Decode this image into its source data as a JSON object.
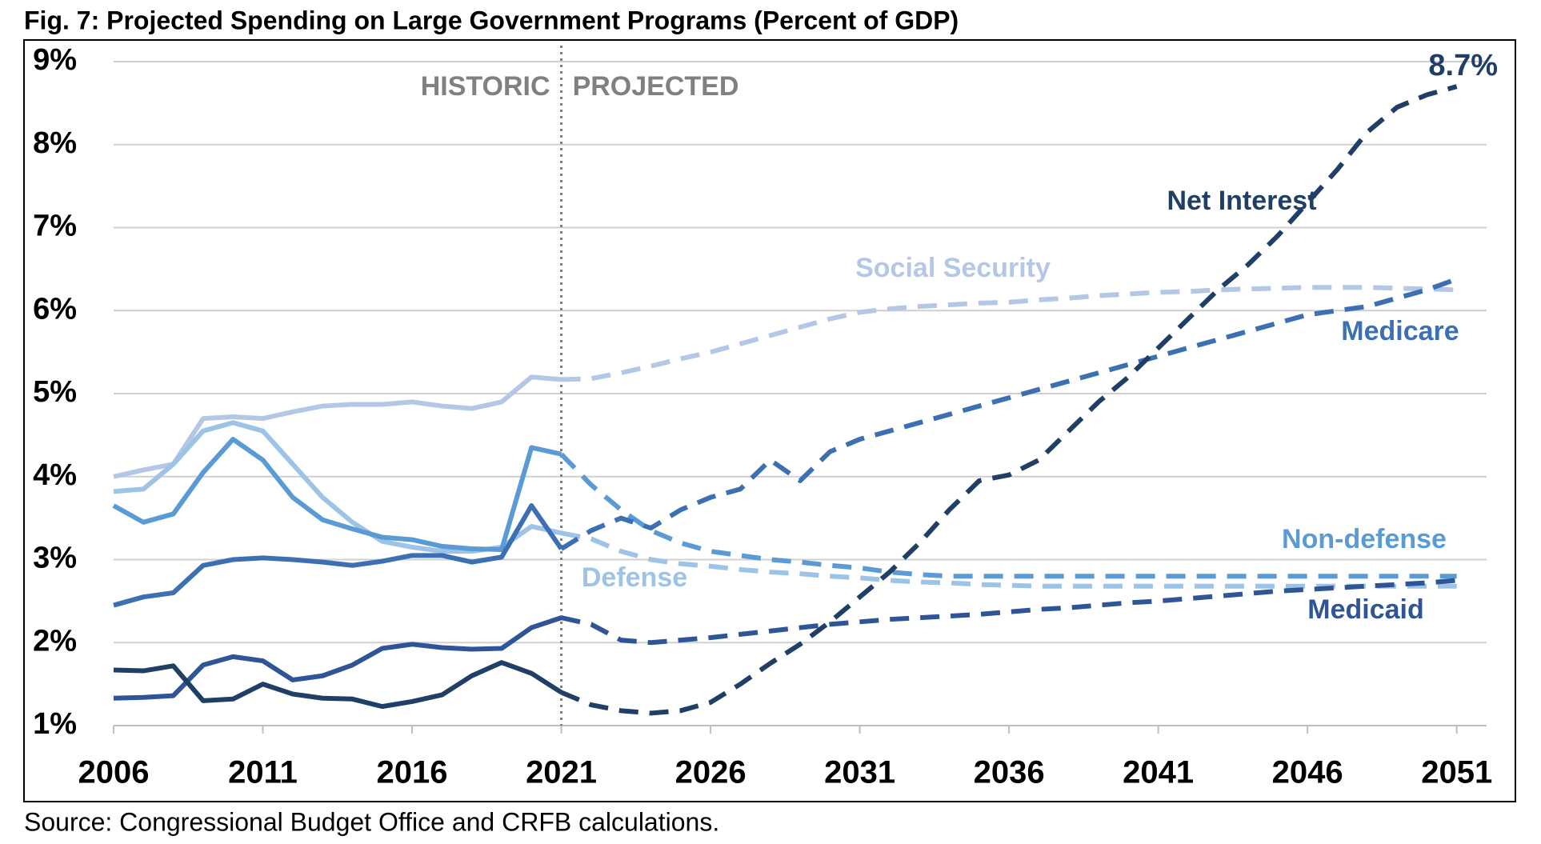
{
  "chart_data": {
    "type": "line",
    "title": "Fig. 7: Projected Spending on Large Government Programs (Percent of GDP)",
    "source": "Source: Congressional Budget Office and CRFB calculations.",
    "divider": {
      "x": 2021,
      "left_label": "HISTORIC",
      "right_label": "PROJECTED"
    },
    "x": [
      2006,
      2007,
      2008,
      2009,
      2010,
      2011,
      2012,
      2013,
      2014,
      2015,
      2016,
      2017,
      2018,
      2019,
      2020,
      2021,
      2022,
      2023,
      2024,
      2025,
      2026,
      2027,
      2028,
      2029,
      2030,
      2031,
      2032,
      2033,
      2034,
      2035,
      2036,
      2037,
      2038,
      2039,
      2040,
      2041,
      2042,
      2043,
      2044,
      2045,
      2046,
      2047,
      2048,
      2049,
      2050,
      2051
    ],
    "xlim": [
      2006,
      2052
    ],
    "xticks": [
      2006,
      2011,
      2016,
      2021,
      2026,
      2031,
      2036,
      2041,
      2046,
      2051
    ],
    "ylim": [
      1,
      9
    ],
    "yticks": [
      {
        "value": 1,
        "label": "1%"
      },
      {
        "value": 2,
        "label": "2%"
      },
      {
        "value": 3,
        "label": "3%"
      },
      {
        "value": 4,
        "label": "4%"
      },
      {
        "value": 5,
        "label": "5%"
      },
      {
        "value": 6,
        "label": "6%"
      },
      {
        "value": 7,
        "label": "7%"
      },
      {
        "value": 8,
        "label": "8%"
      },
      {
        "value": 9,
        "label": "9%"
      }
    ],
    "grid": true,
    "series": [
      {
        "name": "Social Security",
        "color": "#b4c7e7",
        "values": [
          4.0,
          4.08,
          4.15,
          4.7,
          4.72,
          4.7,
          4.78,
          4.85,
          4.87,
          4.87,
          4.9,
          4.85,
          4.82,
          4.9,
          5.2,
          5.17,
          5.18,
          5.25,
          5.33,
          5.42,
          5.5,
          5.6,
          5.7,
          5.8,
          5.9,
          5.98,
          6.02,
          6.05,
          6.07,
          6.09,
          6.1,
          6.13,
          6.15,
          6.18,
          6.2,
          6.22,
          6.23,
          6.25,
          6.26,
          6.27,
          6.28,
          6.28,
          6.28,
          6.27,
          6.26,
          6.25
        ]
      },
      {
        "name": "Defense",
        "color": "#9dc3e6",
        "values": [
          3.82,
          3.85,
          4.15,
          4.55,
          4.65,
          4.55,
          4.15,
          3.75,
          3.45,
          3.22,
          3.15,
          3.1,
          3.1,
          3.15,
          3.4,
          3.32,
          3.25,
          3.1,
          3.0,
          2.95,
          2.92,
          2.88,
          2.85,
          2.83,
          2.8,
          2.78,
          2.75,
          2.73,
          2.72,
          2.7,
          2.69,
          2.68,
          2.68,
          2.68,
          2.68,
          2.68,
          2.68,
          2.68,
          2.68,
          2.68,
          2.68,
          2.68,
          2.68,
          2.68,
          2.68,
          2.68
        ]
      },
      {
        "name": "Non-defense",
        "color": "#5b9bd5",
        "values": [
          3.65,
          3.45,
          3.55,
          4.05,
          4.45,
          4.2,
          3.75,
          3.48,
          3.37,
          3.27,
          3.24,
          3.16,
          3.13,
          3.12,
          4.35,
          4.27,
          3.9,
          3.6,
          3.35,
          3.2,
          3.1,
          3.05,
          3.0,
          2.97,
          2.93,
          2.9,
          2.85,
          2.82,
          2.8,
          2.8,
          2.8,
          2.8,
          2.8,
          2.8,
          2.8,
          2.8,
          2.8,
          2.8,
          2.8,
          2.8,
          2.8,
          2.8,
          2.8,
          2.8,
          2.8,
          2.8
        ]
      },
      {
        "name": "Medicare",
        "color": "#3d70b2",
        "values": [
          2.45,
          2.55,
          2.6,
          2.93,
          3.0,
          3.02,
          3.0,
          2.97,
          2.93,
          2.98,
          3.05,
          3.05,
          2.97,
          3.03,
          3.65,
          3.13,
          3.35,
          3.5,
          3.38,
          3.6,
          3.75,
          3.85,
          4.2,
          3.95,
          4.3,
          4.45,
          4.55,
          4.65,
          4.75,
          4.85,
          4.95,
          5.05,
          5.15,
          5.25,
          5.35,
          5.45,
          5.55,
          5.65,
          5.75,
          5.85,
          5.95,
          6.0,
          6.05,
          6.15,
          6.25,
          6.38
        ]
      },
      {
        "name": "Medicaid",
        "color": "#2f5597",
        "values": [
          1.33,
          1.34,
          1.36,
          1.73,
          1.83,
          1.78,
          1.55,
          1.6,
          1.73,
          1.93,
          1.98,
          1.94,
          1.92,
          1.93,
          2.18,
          2.3,
          2.22,
          2.03,
          2.0,
          2.03,
          2.06,
          2.1,
          2.14,
          2.18,
          2.22,
          2.25,
          2.28,
          2.3,
          2.32,
          2.34,
          2.37,
          2.4,
          2.42,
          2.45,
          2.48,
          2.5,
          2.53,
          2.56,
          2.59,
          2.62,
          2.64,
          2.66,
          2.68,
          2.7,
          2.72,
          2.75
        ]
      },
      {
        "name": "Net Interest",
        "color": "#203f66",
        "values": [
          1.67,
          1.66,
          1.72,
          1.3,
          1.32,
          1.5,
          1.38,
          1.33,
          1.32,
          1.23,
          1.29,
          1.37,
          1.6,
          1.76,
          1.63,
          1.4,
          1.25,
          1.18,
          1.15,
          1.18,
          1.28,
          1.5,
          1.75,
          1.98,
          2.25,
          2.55,
          2.85,
          3.2,
          3.6,
          3.95,
          4.02,
          4.2,
          4.55,
          4.9,
          5.2,
          5.55,
          5.9,
          6.25,
          6.55,
          6.9,
          7.3,
          7.7,
          8.15,
          8.45,
          8.6,
          8.7
        ],
        "value_labels": [
          null,
          null,
          null,
          null,
          null,
          null,
          null,
          null,
          null,
          null,
          null,
          null,
          null,
          null,
          null,
          null,
          null,
          null,
          null,
          null,
          null,
          null,
          null,
          null,
          null,
          null,
          null,
          null,
          null,
          null,
          null,
          null,
          null,
          null,
          null,
          null,
          null,
          null,
          null,
          null,
          null,
          null,
          null,
          null,
          null,
          "8.7%"
        ]
      }
    ]
  }
}
